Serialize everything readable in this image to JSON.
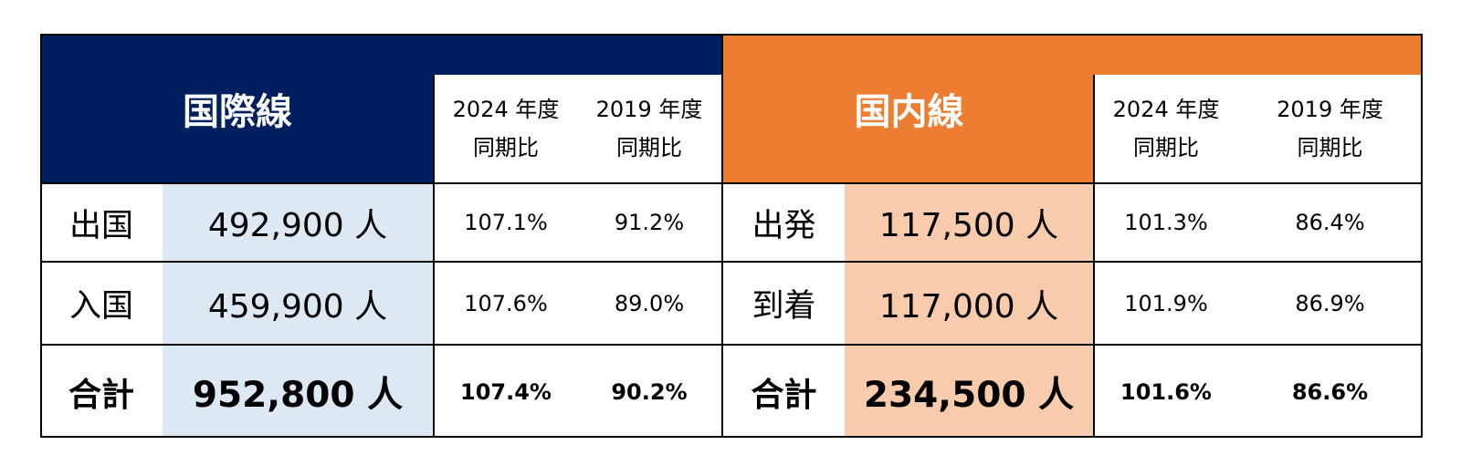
{
  "international": {
    "title": "国際線",
    "period_2024": [
      "2024 年度",
      "同期比"
    ],
    "period_2019": [
      "2019 年度",
      "同期比"
    ],
    "rows": [
      {
        "label": "出国",
        "count": "492,900 人",
        "vs2024": "107.1%",
        "vs2019": "91.2%"
      },
      {
        "label": "入国",
        "count": "459,900 人",
        "vs2024": "107.6%",
        "vs2019": "89.0%"
      },
      {
        "label": "合計",
        "count": "952,800 人",
        "vs2024": "107.4%",
        "vs2019": "90.2%"
      }
    ]
  },
  "domestic": {
    "title": "国内線",
    "period_2024": [
      "2024 年度",
      "同期比"
    ],
    "period_2019": [
      "2019 年度",
      "同期比"
    ],
    "rows": [
      {
        "label": "出発",
        "count": "117,500 人",
        "vs2024": "101.3%",
        "vs2019": "86.4%"
      },
      {
        "label": "到着",
        "count": "117,000 人",
        "vs2024": "101.9%",
        "vs2019": "86.9%"
      },
      {
        "label": "合計",
        "count": "234,500 人",
        "vs2024": "101.6%",
        "vs2019": "86.6%"
      }
    ]
  },
  "colors": {
    "international_header": "#001f5f",
    "domestic_header": "#ed7d31",
    "international_value_fill": "#dde8f5",
    "domestic_value_fill": "#f8cbad"
  }
}
